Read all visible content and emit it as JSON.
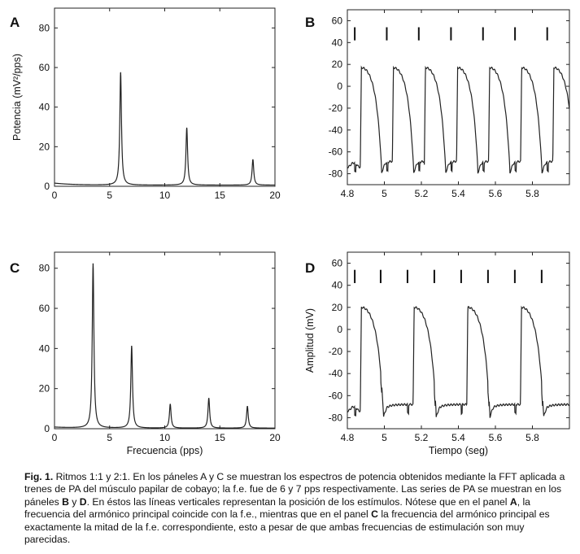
{
  "figure": {
    "caption_lead": "Fig. 1.",
    "caption_parts": [
      {
        "t": " Ritmos 1:1 y 2:1. En los páneles A y C se muestran los espectros de potencia obtenidos mediante la FFT aplicada a trenes de PA del músculo papilar de cobayo; la f.e. fue de 6 y 7 pps respectivamente. Las series de PA se muestran en los páneles ",
        "b": false
      },
      {
        "t": "B",
        "b": true
      },
      {
        "t": " y ",
        "b": false
      },
      {
        "t": "D",
        "b": true
      },
      {
        "t": ". En éstos las líneas verticales representan la posición de los estímulos. Nótese que en el panel ",
        "b": false
      },
      {
        "t": "A",
        "b": true
      },
      {
        "t": ", la frecuencia del armónico principal coincide con la f.e., mientras que en el panel ",
        "b": false
      },
      {
        "t": "C",
        "b": true
      },
      {
        "t": " la frecuencia del armónico principal es exactamente la mitad de la f.e. correspondiente, esto a pesar de que ambas frecuencias de estimulación son muy parecidas.",
        "b": false
      }
    ]
  },
  "chart_data": [
    {
      "panel": "A",
      "type": "line",
      "title": "",
      "xlabel": "",
      "ylabel": "Potencia (mV²/pps)",
      "xlim": [
        0,
        20
      ],
      "ylim": [
        0,
        90
      ],
      "xticks": [
        0,
        5,
        10,
        15,
        20
      ],
      "yticks": [
        0,
        20,
        40,
        60,
        80
      ],
      "baseline": 1,
      "peaks": [
        {
          "x": 6.0,
          "y": 57
        },
        {
          "x": 12.0,
          "y": 29
        },
        {
          "x": 18.0,
          "y": 13
        }
      ]
    },
    {
      "panel": "B",
      "type": "line",
      "title": "",
      "xlabel": "",
      "ylabel": "",
      "xlim": [
        4.8,
        6.0
      ],
      "ylim": [
        -90,
        70
      ],
      "xticks": [
        4.8,
        5,
        5.2,
        5.4,
        5.6,
        5.8
      ],
      "yticks": [
        -80,
        -60,
        -40,
        -20,
        0,
        20,
        40,
        60
      ],
      "stimulus_times": [
        4.84,
        5.013,
        5.186,
        5.36,
        5.533,
        5.706,
        5.88
      ],
      "stimulus_marker_range": [
        42,
        54
      ],
      "action_potential": {
        "rest_mV": -72,
        "peak_mV": 17,
        "upstroke_delay_s": 0.03,
        "duration_s": 0.115
      }
    },
    {
      "panel": "C",
      "type": "line",
      "title": "",
      "xlabel": "Frecuencia (pps)",
      "ylabel": "",
      "xlim": [
        0,
        20
      ],
      "ylim": [
        0,
        88
      ],
      "xticks": [
        0,
        5,
        10,
        15,
        20
      ],
      "yticks": [
        0,
        20,
        40,
        60,
        80
      ],
      "baseline": 0.5,
      "peaks": [
        {
          "x": 3.5,
          "y": 82
        },
        {
          "x": 7.0,
          "y": 41
        },
        {
          "x": 10.5,
          "y": 12
        },
        {
          "x": 14.0,
          "y": 15
        },
        {
          "x": 17.5,
          "y": 11
        }
      ]
    },
    {
      "panel": "D",
      "type": "line",
      "title": "",
      "xlabel": "Tiempo (seg)",
      "ylabel": "Amplitud (mV)",
      "xlim": [
        4.8,
        6.0
      ],
      "ylim": [
        -90,
        70
      ],
      "xticks": [
        4.8,
        5,
        5.2,
        5.4,
        5.6,
        5.8
      ],
      "yticks": [
        -80,
        -60,
        -40,
        -20,
        0,
        20,
        40,
        60
      ],
      "stimulus_times": [
        4.84,
        4.98,
        5.125,
        5.27,
        5.415,
        5.56,
        5.705,
        5.85
      ],
      "stimulus_marker_range": [
        42,
        54
      ],
      "action_potential": {
        "rest_mV": -72,
        "peak_mV": 20,
        "upstroke_delay_s": 0.03,
        "duration_s": 0.125,
        "every_nth_stimulus": 2
      }
    }
  ]
}
